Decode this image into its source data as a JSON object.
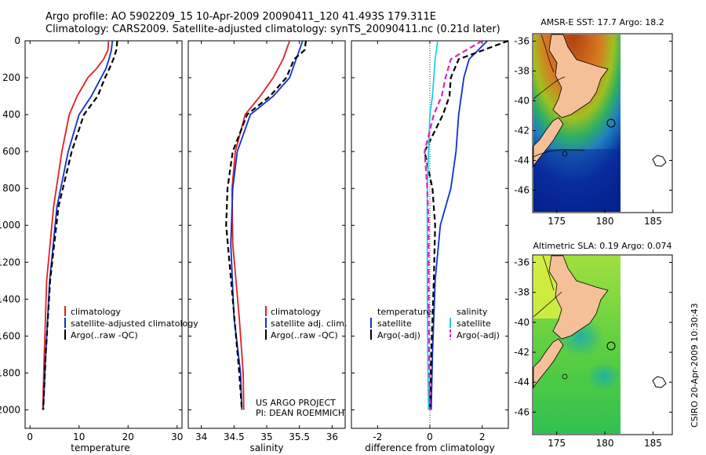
{
  "title": {
    "line1": "Argo profile: AO 5902209_15 10-Apr-2009 20090411_120 41.493S 179.311E",
    "line2": "Climatology: CARS2009. Satellite-adjusted climatology: synTS_20090411.nc (0.21d later)"
  },
  "depth_axis": {
    "ticks": [
      "0",
      "200",
      "400",
      "600",
      "800",
      "1000",
      "1200",
      "1400",
      "1600",
      "1800",
      "2000"
    ]
  },
  "chart_data": [
    {
      "type": "line",
      "id": "temperature",
      "xlabel": "temperature",
      "xlim": [
        -1,
        31
      ],
      "ylim": [
        2100,
        0
      ],
      "xticks": [
        "0",
        "10",
        "20",
        "30"
      ],
      "legend": [
        "climatology",
        "satellite-adjusted climatology",
        "Argo(..raw -QC)"
      ],
      "series": [
        {
          "name": "climatology",
          "color": "#e02020",
          "style": "solid",
          "x": [
            16.0,
            15.9,
            15.0,
            13.6,
            11.8,
            9.6,
            8.0,
            6.5,
            4.8,
            3.4,
            2.9,
            2.6
          ],
          "depth": [
            0,
            50,
            100,
            150,
            200,
            300,
            400,
            600,
            900,
            1300,
            1700,
            2000
          ]
        },
        {
          "name": "satellite-adjusted climatology",
          "color": "#1030d0",
          "style": "solid",
          "x": [
            16.8,
            16.6,
            16.1,
            15.5,
            14.5,
            12.5,
            10.0,
            7.8,
            5.5,
            4.0,
            3.2,
            2.7
          ],
          "depth": [
            0,
            50,
            100,
            150,
            200,
            300,
            400,
            600,
            900,
            1300,
            1700,
            2000
          ]
        },
        {
          "name": "Argo(..raw -QC)",
          "color": "#000000",
          "style": "dash",
          "x": [
            17.8,
            17.6,
            17.0,
            16.2,
            15.3,
            13.8,
            11.0,
            8.5,
            5.8,
            4.1,
            3.2,
            2.7
          ],
          "depth": [
            0,
            50,
            100,
            150,
            200,
            300,
            400,
            600,
            900,
            1300,
            1700,
            2000
          ]
        }
      ]
    },
    {
      "type": "line",
      "id": "salinity",
      "xlabel": "salinity",
      "xlim": [
        33.8,
        36.2
      ],
      "ylim": [
        2100,
        0
      ],
      "xticks": [
        "34",
        "34.5",
        "35",
        "35.5",
        "36"
      ],
      "legend": [
        "climatology",
        "satellite adj. clim.",
        "Argo(..raw -QC)"
      ],
      "series": [
        {
          "name": "climatology",
          "color": "#e02020",
          "style": "solid",
          "x": [
            35.35,
            35.3,
            35.25,
            35.1,
            34.9,
            34.67,
            34.52,
            34.47,
            34.48,
            34.58,
            34.64,
            34.65
          ],
          "depth": [
            0,
            50,
            100,
            200,
            300,
            400,
            600,
            800,
            1100,
            1500,
            1800,
            2000
          ]
        },
        {
          "name": "satellite adj. clim.",
          "color": "#1030d0",
          "style": "solid",
          "x": [
            35.55,
            35.5,
            35.45,
            35.35,
            35.1,
            34.75,
            34.55,
            34.48,
            34.45,
            34.5,
            34.6,
            34.62
          ],
          "depth": [
            0,
            50,
            100,
            200,
            300,
            400,
            600,
            800,
            1100,
            1500,
            1800,
            2000
          ]
        },
        {
          "name": "Argo(..raw -QC)",
          "color": "#000000",
          "style": "dash",
          "x": [
            35.6,
            35.58,
            35.42,
            35.3,
            35.05,
            34.7,
            34.48,
            34.4,
            34.38,
            34.48,
            34.58,
            34.62
          ],
          "depth": [
            0,
            50,
            100,
            200,
            300,
            400,
            600,
            800,
            1000,
            1400,
            1800,
            2000
          ]
        }
      ]
    },
    {
      "type": "line",
      "id": "difference",
      "xlabel": "difference from climatology",
      "xlim": [
        -3,
        3
      ],
      "ylim": [
        2100,
        0
      ],
      "xticks": [
        "-2",
        "0",
        "2"
      ],
      "legend_titles": [
        "temperature",
        "salinity"
      ],
      "legend": [
        "satellite",
        "Argo(-adj)",
        "satellite",
        "Argo(-adj)"
      ],
      "series": [
        {
          "name": "temperature satellite",
          "color": "#1030d0",
          "style": "solid",
          "x": [
            2.2,
            1.5,
            1.3,
            1.2,
            1.1,
            1.0,
            0.8,
            0.4,
            0.2,
            0.1,
            0.05
          ],
          "depth": [
            0,
            100,
            200,
            300,
            400,
            600,
            800,
            1000,
            1300,
            1700,
            2000
          ]
        },
        {
          "name": "temperature Argo(-adj)",
          "color": "#000000",
          "style": "dash",
          "x": [
            3.0,
            1.1,
            0.8,
            0.75,
            0.5,
            -0.2,
            0.1,
            0.2,
            0.15,
            0.05,
            0.0
          ],
          "depth": [
            0,
            100,
            200,
            300,
            400,
            600,
            800,
            1000,
            1300,
            1700,
            2000
          ]
        },
        {
          "name": "salinity satellite",
          "color": "#20d0e0",
          "style": "solid",
          "x": [
            0.3,
            0.2,
            0.15,
            0.1,
            0.0,
            -0.05,
            -0.1,
            -0.1,
            -0.1,
            -0.08,
            -0.05
          ],
          "depth": [
            0,
            100,
            200,
            300,
            400,
            600,
            800,
            1000,
            1300,
            1700,
            2000
          ]
        },
        {
          "name": "salinity Argo(-adj)",
          "color": "#e020c0",
          "style": "dash",
          "x": [
            2.0,
            0.8,
            0.6,
            0.45,
            0.15,
            -0.2,
            -0.1,
            -0.05,
            -0.05,
            -0.03,
            0.0
          ],
          "depth": [
            0,
            100,
            200,
            300,
            400,
            600,
            800,
            1000,
            1300,
            1700,
            2000
          ]
        }
      ]
    },
    {
      "type": "heatmap",
      "id": "sst-map",
      "title": "AMSR-E SST: 17.7 Argo: 18.2",
      "xlim": [
        172.5,
        187
      ],
      "ylim": [
        -47.5,
        -35.5
      ],
      "xticks": [
        "175",
        "180",
        "185"
      ],
      "yticks": [
        "-36",
        "-38",
        "-40",
        "-42",
        "-44",
        "-46"
      ]
    },
    {
      "type": "heatmap",
      "id": "sla-map",
      "title": "Altimetric SLA: 0.19 Argo: 0.074",
      "xlim": [
        172.5,
        187
      ],
      "ylim": [
        -47.5,
        -35.5
      ],
      "xticks": [
        "175",
        "180",
        "185"
      ],
      "yticks": [
        "-36",
        "-38",
        "-40",
        "-42",
        "-44",
        "-46"
      ]
    }
  ],
  "credits": {
    "line1": "US ARGO PROJECT",
    "line2": "PI: DEAN ROEMMICH"
  },
  "side_stamp": "CSIRO 20-Apr-2009 10:30:43"
}
